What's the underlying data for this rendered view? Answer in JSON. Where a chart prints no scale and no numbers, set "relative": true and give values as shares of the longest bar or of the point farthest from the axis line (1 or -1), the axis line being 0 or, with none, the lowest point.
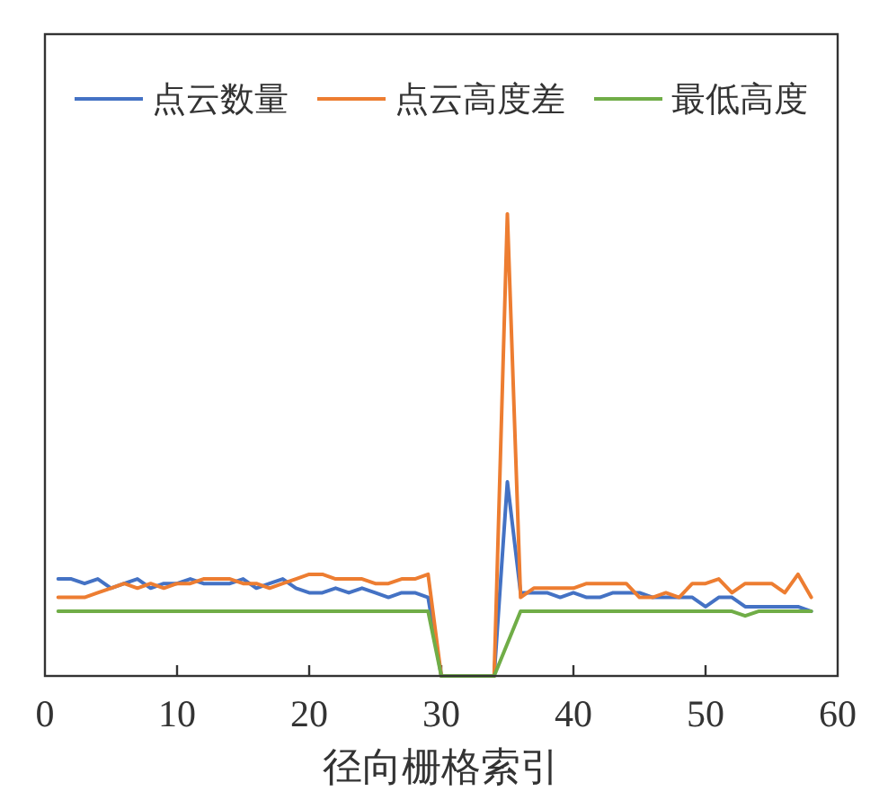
{
  "chart_data": {
    "type": "line",
    "relative": true,
    "xlabel": "径向栅格索引",
    "xlim": [
      0,
      60
    ],
    "xticks": [
      0,
      10,
      20,
      30,
      40,
      50,
      60
    ],
    "tick_labels": "x",
    "legend": "top",
    "x": [
      1,
      2,
      3,
      4,
      5,
      6,
      7,
      8,
      9,
      10,
      11,
      12,
      13,
      14,
      15,
      16,
      17,
      18,
      19,
      20,
      21,
      22,
      23,
      24,
      25,
      26,
      27,
      28,
      29,
      30,
      31,
      32,
      33,
      34,
      35,
      36,
      37,
      38,
      39,
      40,
      41,
      42,
      43,
      44,
      45,
      46,
      47,
      48,
      49,
      50,
      51,
      52,
      53,
      54,
      55,
      56,
      57,
      58
    ],
    "series": [
      {
        "name": "点云数量",
        "color": "#4472c4",
        "values": [
          0.21,
          0.21,
          0.2,
          0.21,
          0.19,
          0.2,
          0.21,
          0.19,
          0.2,
          0.2,
          0.21,
          0.2,
          0.2,
          0.2,
          0.21,
          0.19,
          0.2,
          0.21,
          0.19,
          0.18,
          0.18,
          0.19,
          0.18,
          0.19,
          0.18,
          0.17,
          0.18,
          0.18,
          0.17,
          0,
          0,
          0,
          0,
          0,
          0.42,
          0.18,
          0.18,
          0.18,
          0.17,
          0.18,
          0.17,
          0.17,
          0.18,
          0.18,
          0.18,
          0.17,
          0.17,
          0.17,
          0.17,
          0.15,
          0.17,
          0.17,
          0.15,
          0.15,
          0.15,
          0.15,
          0.15,
          0.14
        ]
      },
      {
        "name": "点云高度差",
        "color": "#ed7d31",
        "values": [
          0.17,
          0.17,
          0.17,
          0.18,
          0.19,
          0.2,
          0.19,
          0.2,
          0.19,
          0.2,
          0.2,
          0.21,
          0.21,
          0.21,
          0.2,
          0.2,
          0.19,
          0.2,
          0.21,
          0.22,
          0.22,
          0.21,
          0.21,
          0.21,
          0.2,
          0.2,
          0.21,
          0.21,
          0.22,
          0,
          0,
          0,
          0,
          0,
          1.0,
          0.17,
          0.19,
          0.19,
          0.19,
          0.19,
          0.2,
          0.2,
          0.2,
          0.2,
          0.17,
          0.17,
          0.18,
          0.17,
          0.2,
          0.2,
          0.21,
          0.18,
          0.2,
          0.2,
          0.2,
          0.18,
          0.22,
          0.17
        ]
      },
      {
        "name": "最低高度",
        "color": "#70ad47",
        "values": [
          0.14,
          0.14,
          0.14,
          0.14,
          0.14,
          0.14,
          0.14,
          0.14,
          0.14,
          0.14,
          0.14,
          0.14,
          0.14,
          0.14,
          0.14,
          0.14,
          0.14,
          0.14,
          0.14,
          0.14,
          0.14,
          0.14,
          0.14,
          0.14,
          0.14,
          0.14,
          0.14,
          0.14,
          0.14,
          0,
          0,
          0,
          0,
          0,
          0.07,
          0.14,
          0.14,
          0.14,
          0.14,
          0.14,
          0.14,
          0.14,
          0.14,
          0.14,
          0.14,
          0.14,
          0.14,
          0.14,
          0.14,
          0.14,
          0.14,
          0.14,
          0.13,
          0.14,
          0.14,
          0.14,
          0.14,
          0.14
        ]
      }
    ]
  }
}
